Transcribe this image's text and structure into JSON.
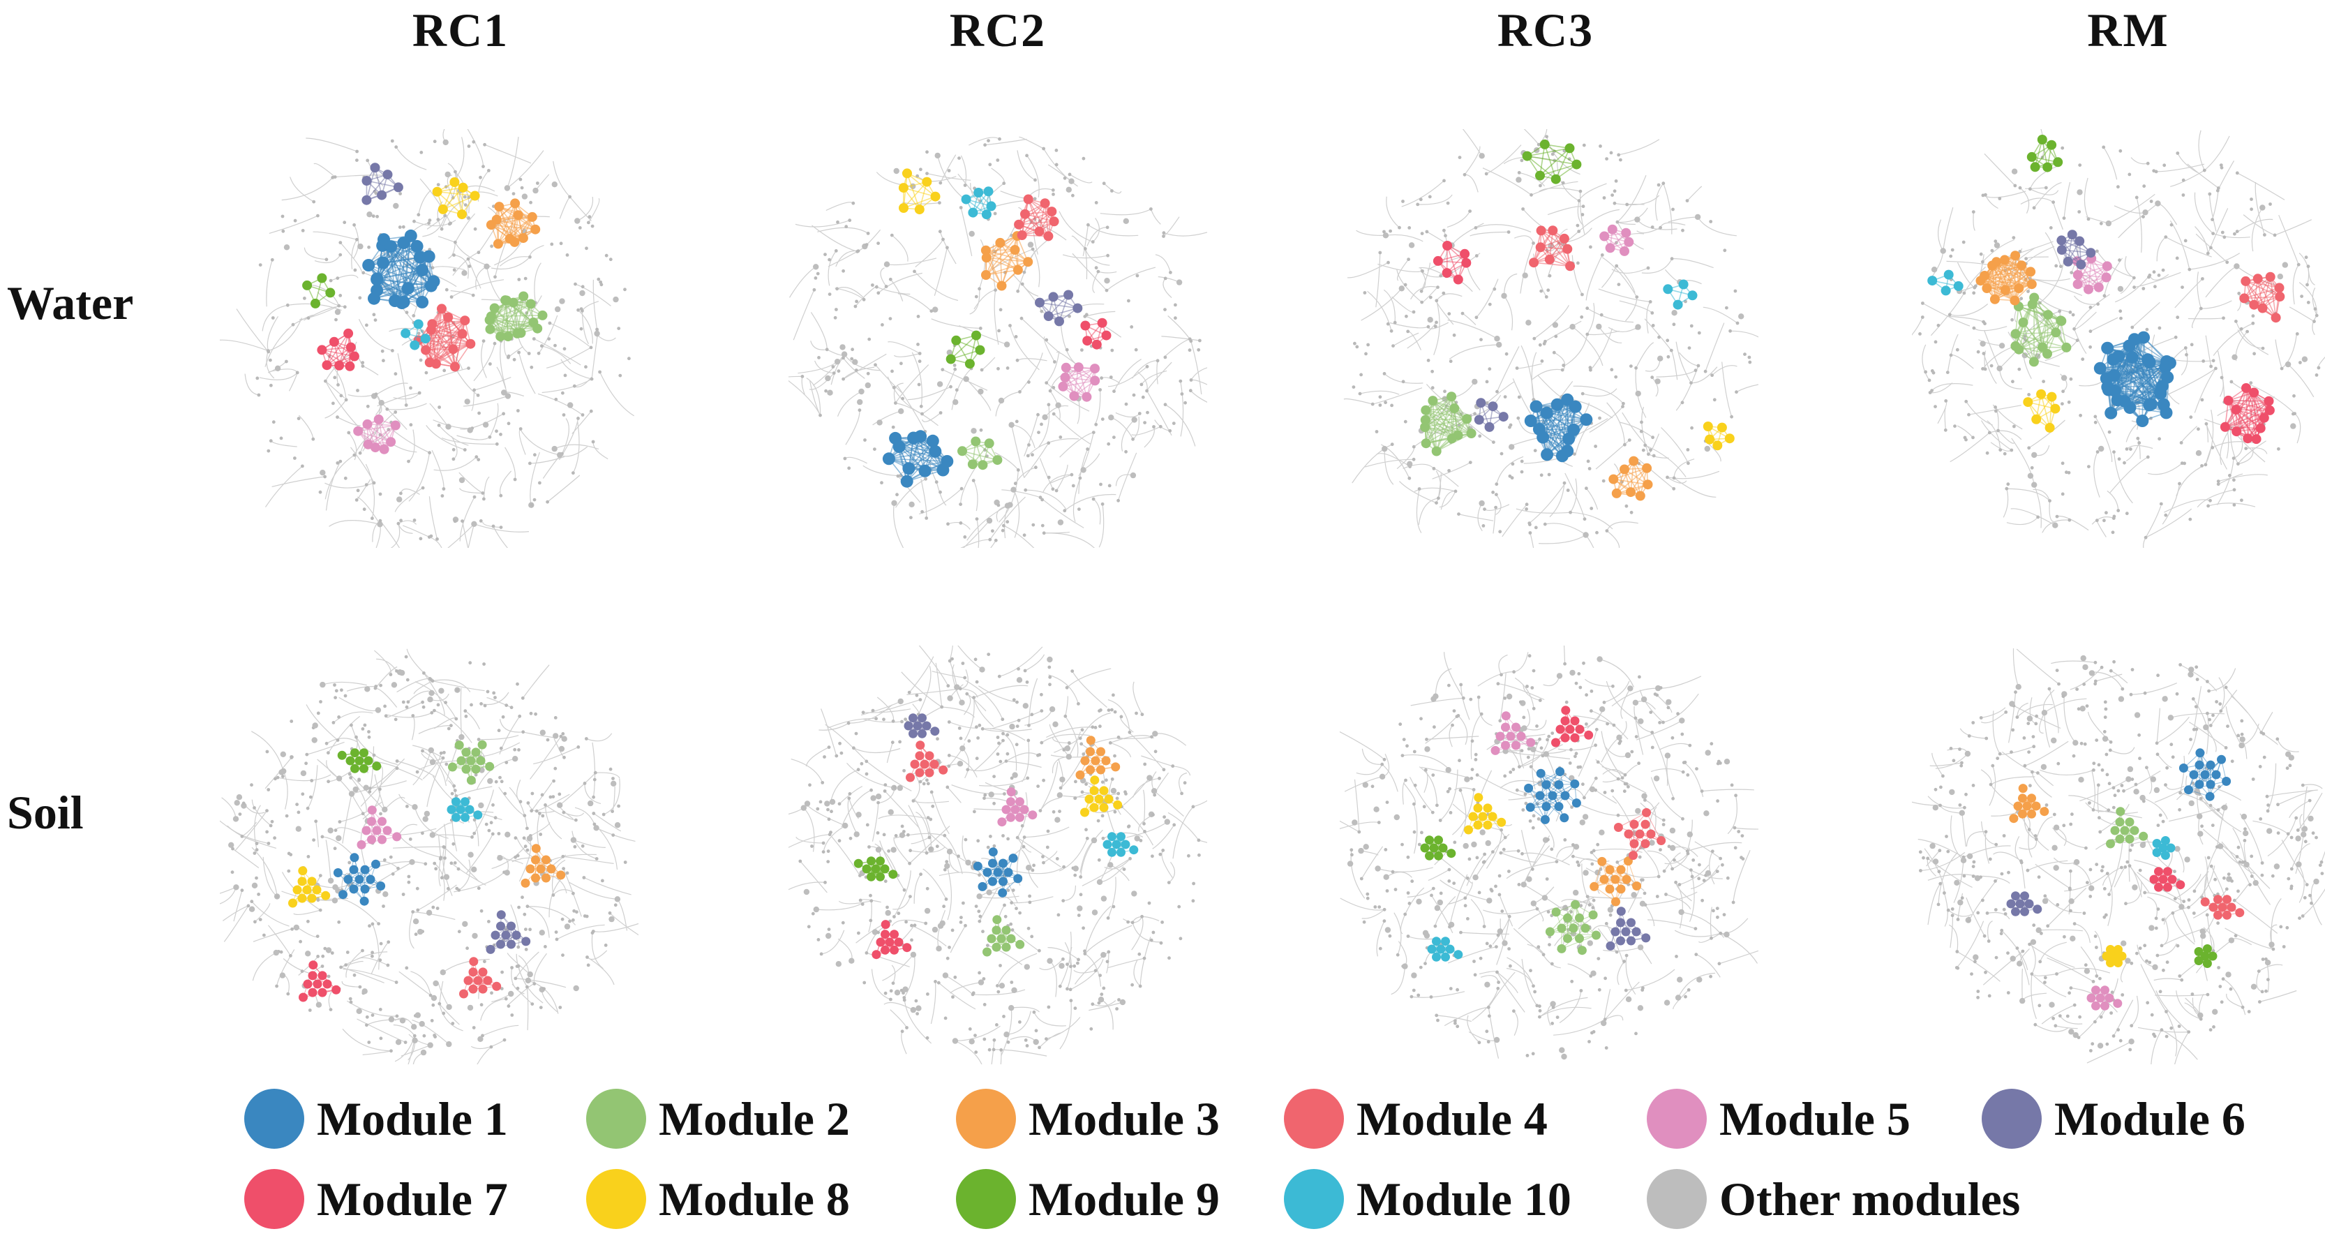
{
  "columns": [
    "RC1",
    "RC2",
    "RC3",
    "RM"
  ],
  "rows": [
    "Water",
    "Soil"
  ],
  "legend": [
    {
      "label": "Module 1",
      "color": "#3a87c0"
    },
    {
      "label": "Module 2",
      "color": "#93c573"
    },
    {
      "label": "Module 3",
      "color": "#f5a04a"
    },
    {
      "label": "Module 4",
      "color": "#f0656e"
    },
    {
      "label": "Module 5",
      "color": "#e08fbf"
    },
    {
      "label": "Module 6",
      "color": "#7678a8"
    },
    {
      "label": "Module 7",
      "color": "#ef4f6a"
    },
    {
      "label": "Module 8",
      "color": "#f9d11c"
    },
    {
      "label": "Module 9",
      "color": "#6bb32e"
    },
    {
      "label": "Module 10",
      "color": "#3cbad5"
    },
    {
      "label": "Other modules",
      "color": "#bdbdbd"
    }
  ]
}
